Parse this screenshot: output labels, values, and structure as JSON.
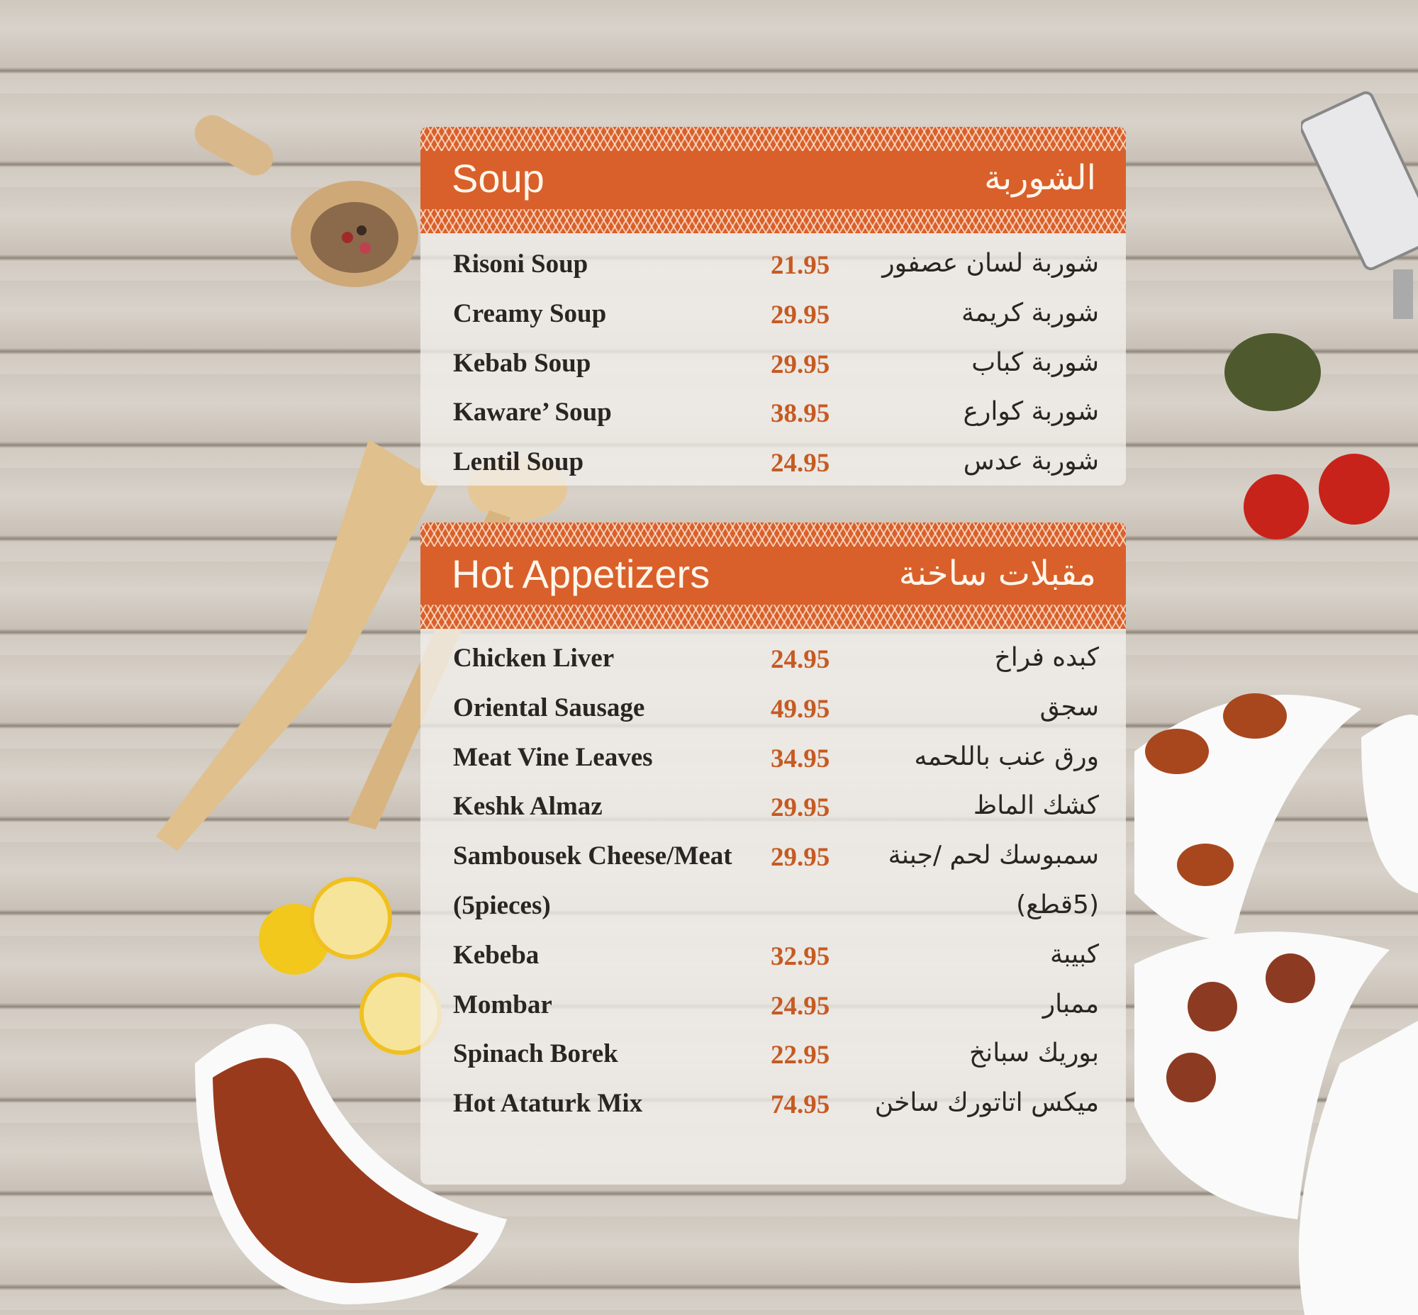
{
  "colors": {
    "accent": "#d9602a",
    "price": "#c65a22"
  },
  "sections": [
    {
      "title_en": "Soup",
      "title_ar": "الشوربة",
      "items": [
        {
          "en": "Risoni Soup",
          "price": "21.95",
          "ar": "شوربة لسان عصفور"
        },
        {
          "en": "Creamy Soup",
          "price": "29.95",
          "ar": "شوربة كريمة"
        },
        {
          "en": "Kebab Soup",
          "price": "29.95",
          "ar": "شوربة كباب"
        },
        {
          "en": "Kaware’ Soup",
          "price": "38.95",
          "ar": "شوربة كوارع"
        },
        {
          "en": "Lentil Soup",
          "price": "24.95",
          "ar": "شوربة عدس"
        }
      ]
    },
    {
      "title_en": "Hot Appetizers",
      "title_ar": "مقبلات ساخنة",
      "items": [
        {
          "en": "Chicken Liver",
          "price": "24.95",
          "ar": "كبده فراخ"
        },
        {
          "en": "Oriental Sausage",
          "price": "49.95",
          "ar": "سجق"
        },
        {
          "en": "Meat Vine Leaves",
          "price": "34.95",
          "ar": "ورق عنب باللحمه"
        },
        {
          "en": "Keshk Almaz",
          "price": "29.95",
          "ar": "كشك الماظ"
        },
        {
          "en": "Sambousek Cheese/Meat",
          "price": "29.95",
          "ar": "سمبوسك لحم /جبنة"
        },
        {
          "en": "(5pieces)",
          "price": "",
          "ar": "(5قطع)"
        },
        {
          "en": "Kebeba",
          "price": "32.95",
          "ar": "كبيبة"
        },
        {
          "en": "Mombar",
          "price": "24.95",
          "ar": "ممبار"
        },
        {
          "en": "Spinach Borek",
          "price": "22.95",
          "ar": "بوريك سبانخ"
        },
        {
          "en": "Hot Ataturk Mix",
          "price": "74.95",
          "ar": "ميكس اتاتورك ساخن"
        }
      ]
    }
  ]
}
